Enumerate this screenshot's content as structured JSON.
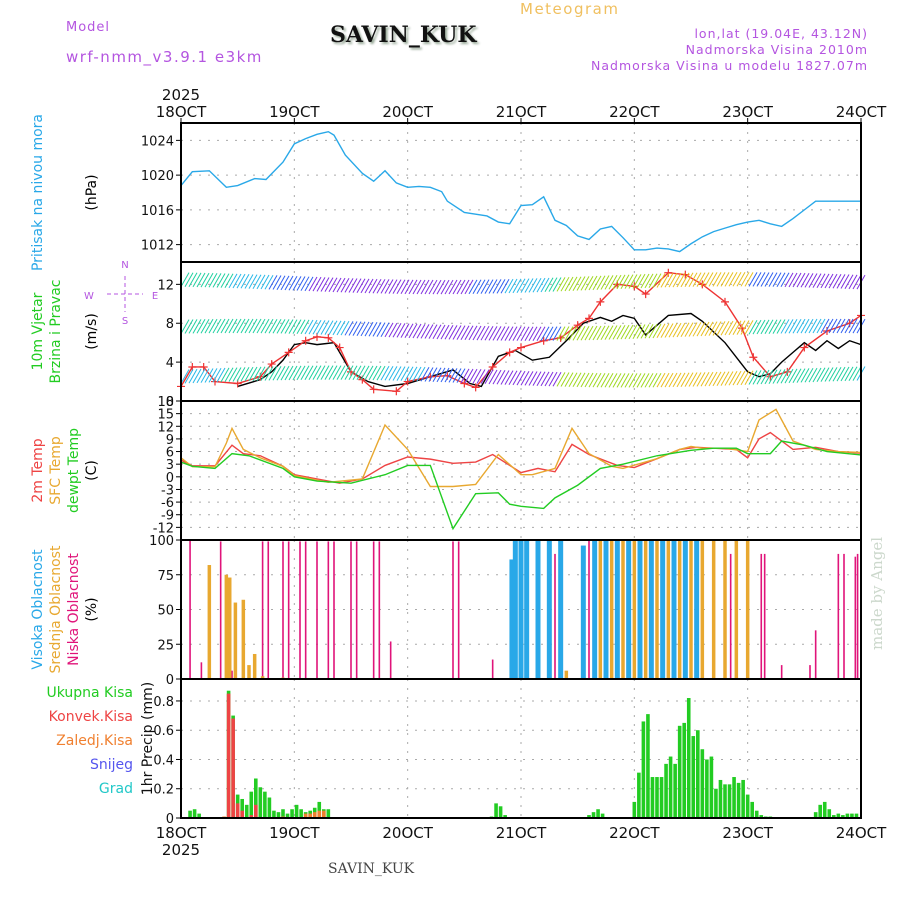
{
  "header": {
    "model_label": "Model",
    "model_version": "wrf-nmm_v3.9.1 e3km",
    "station_title": "SAVIN_KUK",
    "meteogram_label": "Meteogram",
    "lonlat": "lon,lat (19.04E, 43.12N)",
    "elevation": "Nadmorska Visina 2010m",
    "model_elevation": "Nadmorska Visina u modelu 1827.07m"
  },
  "footer": {
    "station_title": "SAVIN_KUK",
    "credit": "made by Angel"
  },
  "time_axis": {
    "year": "2025",
    "ticks": [
      "18OCT",
      "19OCT",
      "20OCT",
      "21OCT",
      "22OCT",
      "23OCT",
      "24OCT"
    ]
  },
  "chart_data": [
    {
      "id": "pressure",
      "type": "line",
      "ylabel_lines": [
        "Pritisak na nivou mora",
        "(hPa)"
      ],
      "ylabel_colors": [
        "#29a8e8",
        "#000000"
      ],
      "ylim": [
        1010,
        1026
      ],
      "yticks": [
        1012,
        1016,
        1020,
        1024
      ],
      "xlim_days": [
        0,
        6
      ],
      "grid": true,
      "series": [
        {
          "name": "MSLP",
          "color": "#29a8e8",
          "x": [
            0,
            0.1,
            0.25,
            0.4,
            0.5,
            0.65,
            0.75,
            0.9,
            1.0,
            1.1,
            1.2,
            1.3,
            1.35,
            1.45,
            1.6,
            1.7,
            1.8,
            1.9,
            2.0,
            2.1,
            2.2,
            2.3,
            2.35,
            2.5,
            2.6,
            2.7,
            2.8,
            2.9,
            3.0,
            3.1,
            3.2,
            3.3,
            3.4,
            3.5,
            3.6,
            3.7,
            3.8,
            3.9,
            4.0,
            4.1,
            4.2,
            4.3,
            4.4,
            4.5,
            4.6,
            4.7,
            4.8,
            4.9,
            5.0,
            5.1,
            5.2,
            5.3,
            5.4,
            5.5,
            5.6,
            5.7,
            5.8,
            5.9,
            6.0
          ],
          "values": [
            1018.8,
            1020.4,
            1020.5,
            1018.6,
            1018.8,
            1019.6,
            1019.5,
            1021.5,
            1023.6,
            1024.2,
            1024.7,
            1025.0,
            1024.6,
            1022.3,
            1020.2,
            1019.3,
            1020.5,
            1019.1,
            1018.6,
            1018.7,
            1018.6,
            1018.1,
            1017.0,
            1015.7,
            1015.5,
            1015.3,
            1014.6,
            1014.4,
            1016.5,
            1016.6,
            1017.5,
            1014.8,
            1014.2,
            1013.0,
            1012.6,
            1013.8,
            1014.1,
            1012.8,
            1011.4,
            1011.4,
            1011.6,
            1011.5,
            1011.2,
            1012.1,
            1012.9,
            1013.5,
            1013.9,
            1014.3,
            1014.6,
            1014.8,
            1014.4,
            1014.1,
            1015.0,
            1016.0,
            1017.0,
            1017.0,
            1017.0,
            1017.0,
            1017.0
          ]
        }
      ]
    },
    {
      "id": "wind",
      "type": "line",
      "ylabel_lines": [
        "10m Vjetar",
        "Brzina i Pravac",
        "(m/s)"
      ],
      "ylabel_colors": [
        "#22cc22",
        "#22cc22",
        "#000000"
      ],
      "compass": {
        "n": "N",
        "s": "S",
        "e": "E",
        "w": "W"
      },
      "ylim": [
        0,
        14.3
      ],
      "yticks": [
        0,
        4,
        8,
        12
      ],
      "grid": true,
      "series": [
        {
          "name": "wind speed (black)",
          "color": "#000000",
          "x": [
            0.5,
            0.7,
            0.8,
            0.9,
            1.0,
            1.1,
            1.2,
            1.35,
            1.5,
            1.65,
            1.8,
            2.0,
            2.2,
            2.4,
            2.55,
            2.65,
            2.8,
            2.95,
            3.1,
            3.25,
            3.4,
            3.55,
            3.7,
            3.8,
            3.9,
            4.0,
            4.1,
            4.3,
            4.5,
            4.6,
            4.8,
            5.0,
            5.1,
            5.2,
            5.3,
            5.4,
            5.5,
            5.6,
            5.7,
            5.8,
            5.9,
            6.0
          ],
          "values": [
            1.5,
            2.2,
            3.0,
            4.2,
            5.8,
            6.0,
            5.8,
            6.0,
            3.0,
            2.0,
            1.5,
            1.8,
            2.5,
            3.2,
            1.8,
            1.5,
            4.6,
            5.2,
            4.2,
            4.5,
            6.2,
            8.0,
            8.6,
            8.2,
            8.8,
            8.5,
            6.8,
            8.8,
            9.0,
            8.2,
            6.0,
            3.0,
            2.5,
            2.8,
            4.0,
            5.0,
            6.0,
            5.2,
            6.2,
            5.4,
            6.2,
            5.8
          ]
        },
        {
          "name": "wind gust (red +)",
          "color": "#ee3333",
          "x": [
            0,
            0.1,
            0.2,
            0.3,
            0.5,
            0.7,
            0.8,
            0.95,
            1.1,
            1.2,
            1.3,
            1.4,
            1.5,
            1.6,
            1.7,
            1.9,
            2.0,
            2.2,
            2.35,
            2.5,
            2.6,
            2.75,
            2.9,
            3.0,
            3.2,
            3.35,
            3.5,
            3.6,
            3.7,
            3.85,
            4.0,
            4.1,
            4.3,
            4.45,
            4.6,
            4.8,
            4.95,
            5.05,
            5.2,
            5.35,
            5.5,
            5.7,
            5.9,
            6.0
          ],
          "values": [
            1.5,
            3.5,
            3.5,
            2.0,
            1.8,
            2.5,
            3.8,
            5.0,
            6.2,
            6.6,
            6.5,
            5.5,
            3.0,
            2.2,
            1.2,
            1.0,
            2.0,
            2.5,
            2.6,
            1.8,
            1.4,
            3.5,
            5.0,
            5.5,
            6.2,
            6.5,
            7.8,
            8.5,
            10.2,
            12.0,
            11.8,
            11.0,
            13.2,
            13.0,
            12.0,
            10.2,
            7.5,
            4.5,
            2.5,
            3.0,
            5.5,
            7.2,
            8.0,
            8.8
          ]
        }
      ]
    },
    {
      "id": "temperature",
      "type": "line",
      "ylabel_lines": [
        "2m Temp",
        "SFC Temp",
        "dewpt Temp",
        "(C)"
      ],
      "ylabel_colors": [
        "#ee4444",
        "#e8a830",
        "#22cc22",
        "#000000"
      ],
      "ylim": [
        -15,
        18
      ],
      "yticks": [
        -12,
        -9,
        -6,
        -3,
        0,
        3,
        6,
        9,
        12,
        15,
        18
      ],
      "grid": true,
      "series": [
        {
          "name": "2m Temp",
          "color": "#ee4444",
          "x": [
            0,
            0.1,
            0.3,
            0.45,
            0.55,
            0.7,
            0.9,
            1.0,
            1.2,
            1.4,
            1.6,
            1.8,
            2.0,
            2.2,
            2.4,
            2.6,
            2.75,
            3.0,
            3.15,
            3.3,
            3.45,
            3.6,
            3.85,
            4.0,
            4.2,
            4.4,
            4.55,
            4.7,
            4.9,
            5.0,
            5.1,
            5.2,
            5.4,
            5.6,
            5.8,
            6.0
          ],
          "values": [
            4,
            2.6,
            2.6,
            7.5,
            5.5,
            5,
            2.5,
            0.5,
            -0.5,
            -1.5,
            -0.5,
            2.7,
            4.7,
            4.2,
            3.2,
            3.5,
            5.3,
            1.0,
            2.0,
            1.2,
            7.7,
            5.3,
            2.7,
            2.2,
            4.3,
            6.5,
            7.0,
            6.8,
            6.5,
            4.5,
            9.0,
            10.5,
            6.5,
            7.0,
            6.0,
            5.6
          ]
        },
        {
          "name": "SFC Temp",
          "color": "#e8a830",
          "x": [
            0,
            0.1,
            0.3,
            0.4,
            0.45,
            0.55,
            0.7,
            0.9,
            1.0,
            1.3,
            1.6,
            1.8,
            2.0,
            2.2,
            2.4,
            2.6,
            2.8,
            3.0,
            3.1,
            3.3,
            3.45,
            3.6,
            3.8,
            3.9,
            4.2,
            4.4,
            4.5,
            4.6,
            4.8,
            5.0,
            5.1,
            5.25,
            5.4,
            5.6,
            5.8,
            6.0
          ],
          "values": [
            4.5,
            2.4,
            2.4,
            8.0,
            11.5,
            6.5,
            4.5,
            2.5,
            0.3,
            -1.3,
            -0.5,
            12.3,
            6.5,
            -2.3,
            -2.3,
            -1.8,
            5.3,
            0.5,
            0.5,
            2.0,
            11.5,
            5.5,
            2.5,
            2.0,
            4.3,
            6.5,
            7.2,
            6.8,
            6.8,
            6.0,
            13.5,
            16.0,
            8.5,
            6.5,
            6.0,
            5.8
          ]
        },
        {
          "name": "dewpt Temp",
          "color": "#22cc22",
          "x": [
            0,
            0.1,
            0.3,
            0.45,
            0.6,
            0.9,
            1.0,
            1.2,
            1.5,
            1.8,
            2.0,
            2.2,
            2.4,
            2.6,
            2.8,
            2.9,
            3.0,
            3.2,
            3.3,
            3.5,
            3.7,
            3.9,
            4.2,
            4.5,
            4.7,
            4.9,
            5.0,
            5.2,
            5.3,
            5.5,
            5.7,
            6.0
          ],
          "values": [
            3.5,
            2.5,
            2.0,
            5.5,
            5.0,
            2.0,
            0.0,
            -1.0,
            -1.5,
            0.5,
            2.7,
            2.7,
            -12.3,
            -4.0,
            -3.8,
            -6.5,
            -7.0,
            -7.5,
            -5.0,
            -2.0,
            2.0,
            3.0,
            5.0,
            6.3,
            6.8,
            6.8,
            5.5,
            5.5,
            8.5,
            7.5,
            6.0,
            5.2
          ]
        }
      ]
    },
    {
      "id": "cloud_cover",
      "type": "bar",
      "ylabel_lines": [
        "Visoka Oblacnost",
        "Srednja Oblacnost",
        "Niska Oblacnost",
        "(%)"
      ],
      "ylabel_colors": [
        "#29a8e8",
        "#e8a830",
        "#e0147a",
        "#000000"
      ],
      "ylim": [
        0,
        100
      ],
      "yticks": [
        0,
        25,
        50,
        75,
        100
      ],
      "grid": true,
      "series": [
        {
          "name": "Niska Oblacnost",
          "color": "#e0147a",
          "x": [
            0.08,
            0.18,
            0.35,
            0.45,
            0.72,
            0.77,
            0.9,
            0.95,
            1.05,
            1.1,
            1.2,
            1.3,
            1.35,
            1.5,
            1.55,
            1.7,
            1.75,
            1.85,
            2.4,
            2.45,
            2.75,
            3.25,
            3.3,
            3.6,
            4.1,
            4.2,
            4.35,
            4.55,
            4.7,
            4.85,
            5.0,
            5.12,
            5.15,
            5.3,
            5.55,
            5.6,
            5.8,
            5.85,
            5.95,
            5.97
          ],
          "values": [
            100,
            12,
            99,
            6,
            99,
            99,
            99,
            99,
            99,
            99,
            99,
            99,
            99,
            99,
            99,
            99,
            99,
            27,
            99,
            99,
            14,
            5,
            90,
            100,
            90,
            90,
            90,
            90,
            90,
            90,
            90,
            90,
            90,
            10,
            10,
            35,
            90,
            90,
            88,
            90
          ]
        },
        {
          "name": "Srednja Oblacnost",
          "color": "#e8a830",
          "x": [
            0.25,
            0.4,
            0.43,
            0.48,
            0.55,
            0.6,
            0.65,
            0.72,
            0.9,
            3.4,
            3.65,
            3.7,
            3.8,
            3.9,
            4.0,
            4.1,
            4.2,
            4.3,
            4.4,
            4.5,
            4.6,
            4.7,
            4.8,
            4.9,
            5.0
          ],
          "values": [
            82,
            75,
            73,
            55,
            57,
            10,
            18,
            2,
            1,
            6,
            100,
            100,
            100,
            100,
            100,
            100,
            100,
            100,
            100,
            100,
            100,
            100,
            100,
            100,
            100
          ]
        },
        {
          "name": "Visoka Oblacnost",
          "color": "#29a8e8",
          "x": [
            2.92,
            2.95,
            3.0,
            3.05,
            3.15,
            3.25,
            3.35,
            3.55,
            3.65,
            3.75,
            3.85,
            3.95,
            4.05,
            4.15,
            4.25,
            4.35,
            4.45,
            4.55
          ],
          "values": [
            86,
            100,
            100,
            100,
            100,
            100,
            100,
            96,
            100,
            100,
            100,
            100,
            100,
            100,
            100,
            100,
            100,
            100
          ]
        }
      ]
    },
    {
      "id": "precipitation",
      "type": "bar",
      "ylabel_lines": [
        "1hr Precip (mm)"
      ],
      "legend": [
        {
          "label": "Ukupna Kisa",
          "color": "#22cc22"
        },
        {
          "label": "Konvek.Kisa",
          "color": "#ee4444"
        },
        {
          "label": "Zaledj.Kisa",
          "color": "#f08030"
        },
        {
          "label": "Snijeg",
          "color": "#5555ee"
        },
        {
          "label": "Grad",
          "color": "#22c8c8"
        }
      ],
      "ylim": [
        0,
        0.95
      ],
      "yticks": [
        0,
        0.2,
        0.4,
        0.6,
        0.8
      ],
      "grid": true,
      "series": [
        {
          "name": "Ukupna Kisa",
          "color": "#22cc22",
          "x": [
            0.08,
            0.12,
            0.16,
            0.42,
            0.46,
            0.5,
            0.54,
            0.58,
            0.62,
            0.66,
            0.7,
            0.74,
            0.78,
            0.82,
            0.86,
            0.9,
            0.94,
            0.98,
            1.02,
            1.06,
            1.1,
            1.14,
            1.18,
            1.22,
            1.26,
            1.3,
            2.74,
            2.78,
            2.82,
            2.86,
            3.6,
            3.64,
            3.68,
            3.72,
            4.0,
            4.04,
            4.08,
            4.12,
            4.16,
            4.2,
            4.24,
            4.28,
            4.32,
            4.36,
            4.4,
            4.44,
            4.48,
            4.52,
            4.56,
            4.6,
            4.64,
            4.68,
            4.72,
            4.76,
            4.8,
            4.84,
            4.88,
            4.92,
            4.96,
            5.0,
            5.04,
            5.08,
            5.12,
            5.16,
            5.2,
            5.6,
            5.64,
            5.68,
            5.72,
            5.76,
            5.8,
            5.84,
            5.88,
            5.92,
            5.96
          ],
          "values": [
            0.05,
            0.06,
            0.03,
            0.87,
            0.7,
            0.16,
            0.13,
            0.09,
            0.18,
            0.27,
            0.21,
            0.18,
            0.14,
            0.05,
            0.04,
            0.06,
            0.03,
            0.06,
            0.09,
            0.06,
            0.04,
            0.05,
            0.07,
            0.11,
            0.06,
            0.06,
            0.01,
            0.1,
            0.08,
            0.02,
            0.02,
            0.04,
            0.06,
            0.03,
            0.11,
            0.31,
            0.66,
            0.71,
            0.28,
            0.28,
            0.28,
            0.37,
            0.42,
            0.37,
            0.63,
            0.65,
            0.82,
            0.56,
            0.6,
            0.47,
            0.4,
            0.42,
            0.2,
            0.26,
            0.23,
            0.23,
            0.28,
            0.24,
            0.26,
            0.16,
            0.11,
            0.05,
            0.02,
            0.01,
            0.01,
            0.04,
            0.09,
            0.11,
            0.06,
            0.02,
            0.03,
            0.02,
            0.03,
            0.03,
            0.03
          ]
        },
        {
          "name": "Konvek.Kisa",
          "color": "#ee4444",
          "x": [
            0.42,
            0.46,
            0.5,
            0.54,
            0.62,
            0.66
          ],
          "values": [
            0.85,
            0.68,
            0.1,
            0.05,
            0.02,
            0.09
          ]
        },
        {
          "name": "Zaledj.Kisa",
          "color": "#f08030",
          "x": [
            0.38,
            0.9,
            1.1,
            1.14,
            1.18,
            1.22,
            1.26
          ],
          "values": [
            0.01,
            0.01,
            0.03,
            0.03,
            0.04,
            0.05,
            0.05
          ]
        }
      ]
    }
  ]
}
